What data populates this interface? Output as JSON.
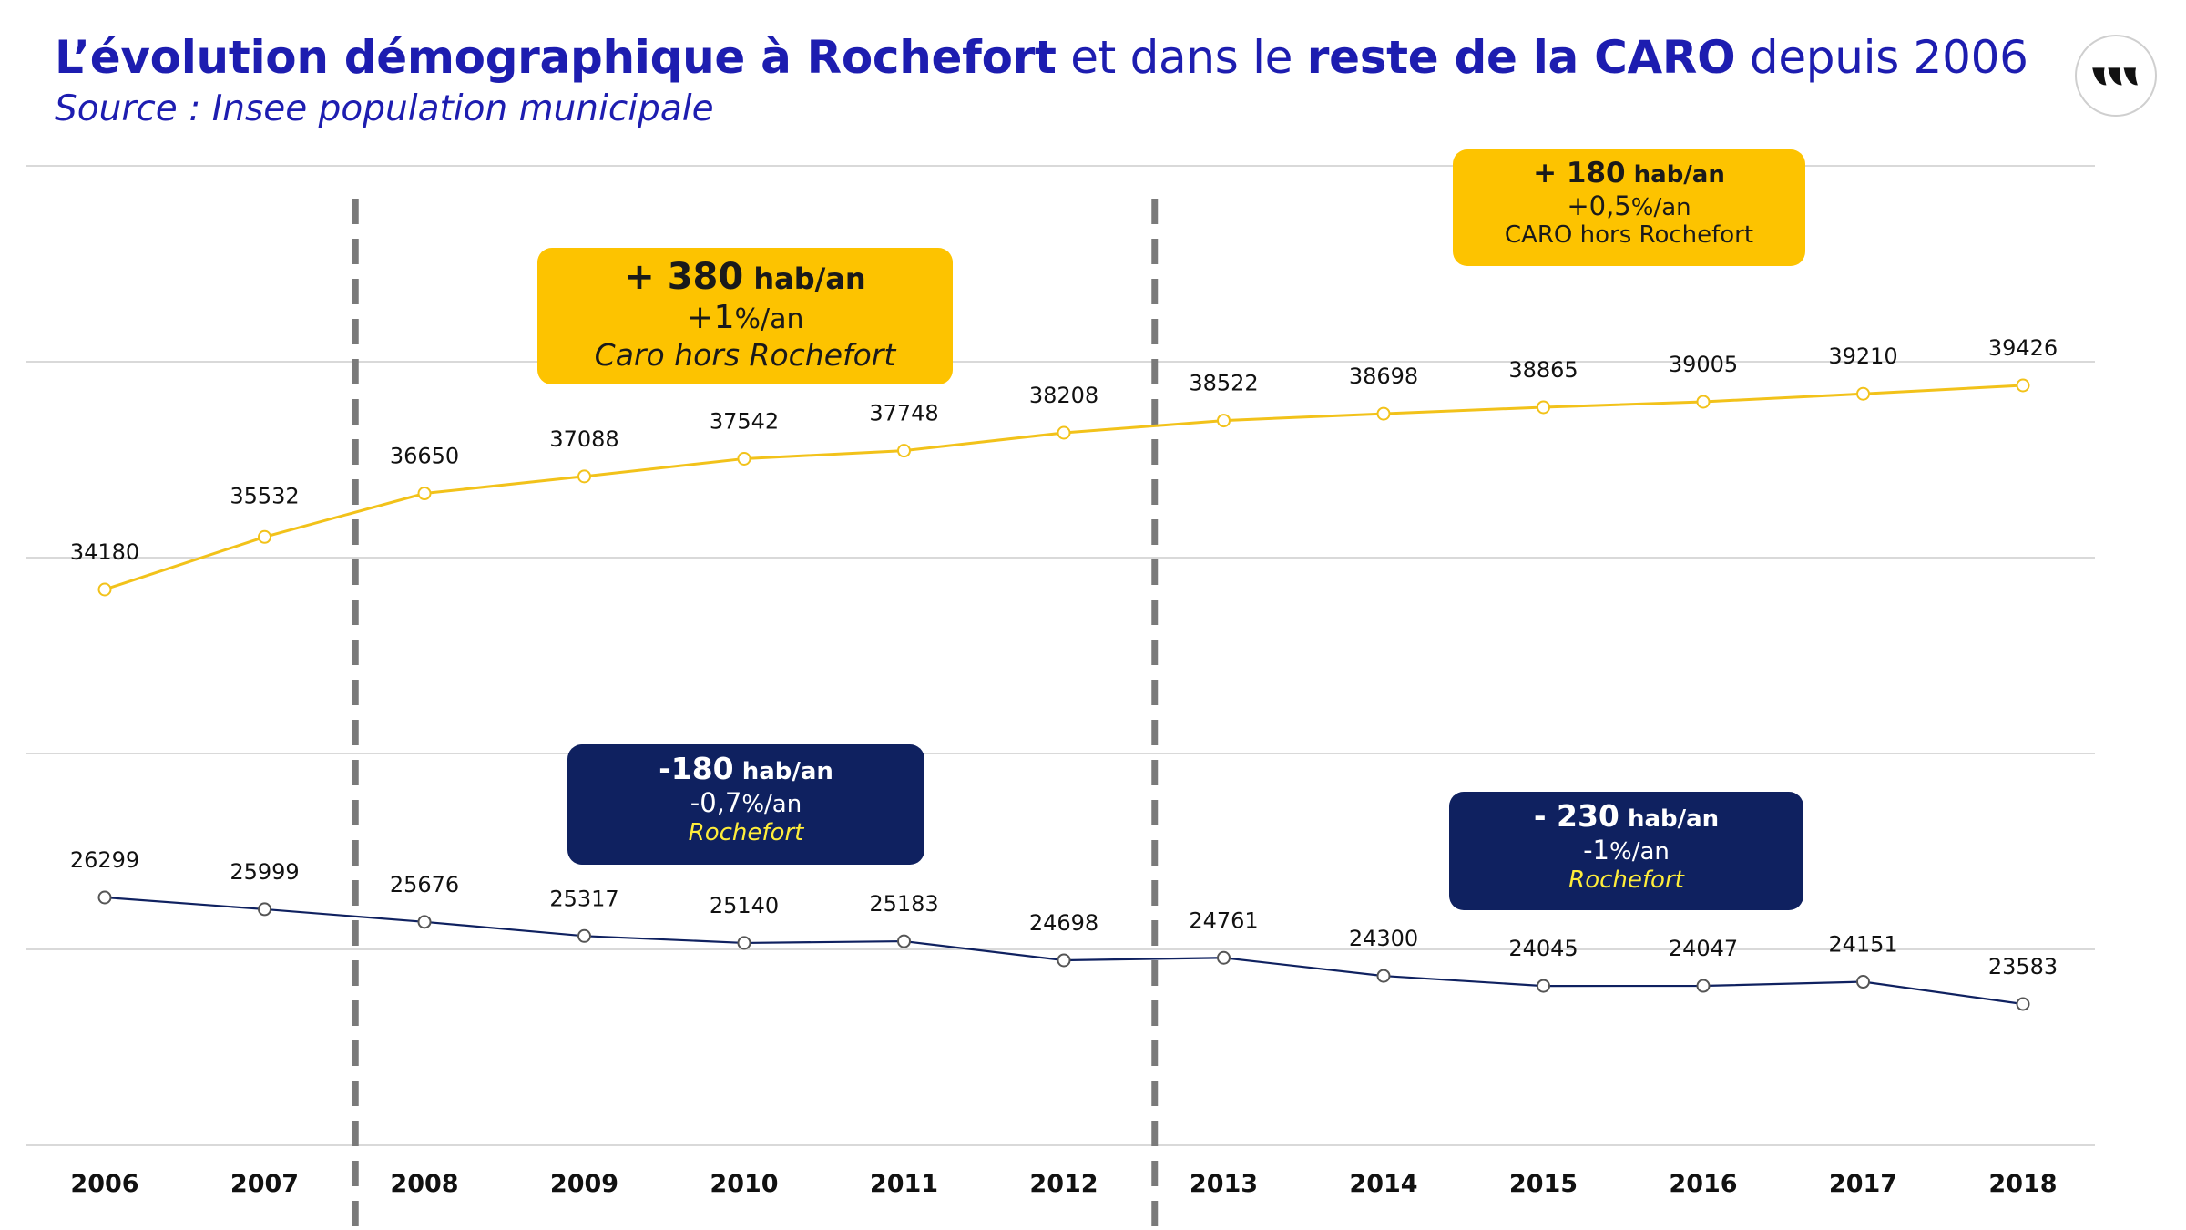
{
  "header": {
    "title_parts": [
      {
        "text": "L’évolution démographique à Rochefort",
        "bold": true
      },
      {
        "text": " et dans le ",
        "bold": false
      },
      {
        "text": "reste de la CARO",
        "bold": true
      },
      {
        "text": " depuis 2006",
        "bold": false
      }
    ],
    "subtitle": "Source : Insee population municipale"
  },
  "logo": {
    "icon": "brand-logo-icon"
  },
  "colors": {
    "title": "#1d1db0",
    "caro_line": "#f2c21a",
    "rochefort_line": "#0f2160",
    "yellow_box": "#fdc300",
    "navy_box": "#0f2160",
    "navy_box_accent": "#ffed3a",
    "gridline": "#d9d9d9",
    "dashed_marker": "#7a7a7a"
  },
  "annotations": [
    {
      "id": "caro-2006-2012",
      "style": "yellow",
      "num": "+ 380",
      "unit": " hab/an",
      "pct": "+1",
      "pct_unit": "%/an",
      "label": "Caro hors Rochefort",
      "italic": true
    },
    {
      "id": "caro-2013-2018",
      "style": "yellow",
      "num": "+ 180",
      "unit": " hab/an",
      "pct": "+0,5",
      "pct_unit": "%/an",
      "label": "CARO hors Rochefort",
      "italic": false
    },
    {
      "id": "rochefort-2006-2012",
      "style": "navy",
      "num": "-180",
      "unit": " hab/an",
      "pct": "-0,7",
      "pct_unit": "%/an",
      "label": "Rochefort",
      "italic": true
    },
    {
      "id": "rochefort-2013-2018",
      "style": "navy",
      "num": "- 230",
      "unit": " hab/an",
      "pct": "-1",
      "pct_unit": "%/an",
      "label": "Rochefort",
      "italic": true
    }
  ],
  "chart_data": {
    "type": "line",
    "title": "",
    "xlabel": "",
    "ylabel": "",
    "categories": [
      "2006",
      "2007",
      "2008",
      "2009",
      "2010",
      "2011",
      "2012",
      "2013",
      "2014",
      "2015",
      "2016",
      "2017",
      "2018"
    ],
    "series": [
      {
        "name": "Caro hors Rochefort",
        "color": "#f2c21a",
        "values": [
          34180,
          35532,
          36650,
          37088,
          37542,
          37748,
          38208,
          38522,
          38698,
          38865,
          39005,
          39210,
          39426
        ]
      },
      {
        "name": "Rochefort",
        "color": "#0f2160",
        "values": [
          26299,
          25999,
          25676,
          25317,
          25140,
          25183,
          24698,
          24761,
          24300,
          24045,
          24047,
          24151,
          23583
        ]
      }
    ],
    "period_separators": [
      {
        "after": "2007",
        "before": "2008"
      },
      {
        "after": "2012",
        "before": "2013"
      }
    ],
    "grid": true,
    "legend": "none",
    "data_labels": true
  }
}
